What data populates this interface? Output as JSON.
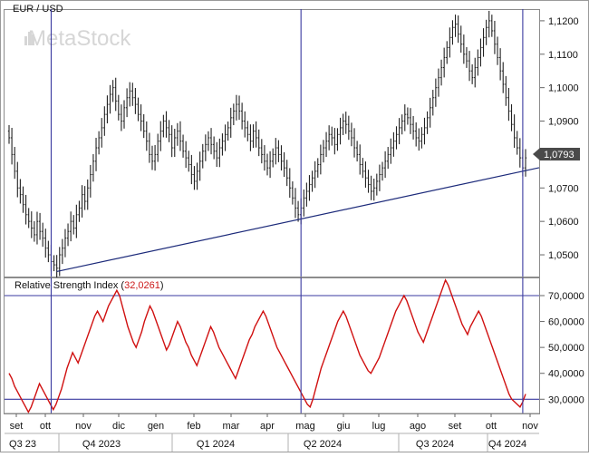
{
  "watermark": "MetaStock",
  "chart_data": [
    {
      "type": "ohlc",
      "title": "EUR / USD",
      "last_value_label": "1,0793",
      "y_tick_labels": [
        "1,1200",
        "1,1100",
        "1,1000",
        "1,0900",
        "1,0800",
        "1,0700",
        "1,0600",
        "1,0500"
      ],
      "y_ticks": [
        1.12,
        1.11,
        1.1,
        1.09,
        1.08,
        1.07,
        1.06,
        1.05
      ],
      "ylim": [
        1.0435,
        1.1235
      ],
      "series_close": [
        1.085,
        1.08,
        1.075,
        1.07,
        1.068,
        1.065,
        1.062,
        1.06,
        1.058,
        1.056,
        1.06,
        1.057,
        1.055,
        1.052,
        1.05,
        1.048,
        1.047,
        1.046,
        1.05,
        1.052,
        1.055,
        1.057,
        1.06,
        1.058,
        1.062,
        1.064,
        1.068,
        1.066,
        1.07,
        1.074,
        1.078,
        1.082,
        1.085,
        1.088,
        1.092,
        1.095,
        1.098,
        1.1,
        1.096,
        1.092,
        1.09,
        1.094,
        1.097,
        1.099,
        1.097,
        1.095,
        1.092,
        1.09,
        1.087,
        1.084,
        1.08,
        1.078,
        1.08,
        1.084,
        1.087,
        1.09,
        1.088,
        1.086,
        1.082,
        1.085,
        1.087,
        1.084,
        1.081,
        1.079,
        1.077,
        1.074,
        1.072,
        1.075,
        1.078,
        1.081,
        1.083,
        1.085,
        1.083,
        1.081,
        1.079,
        1.082,
        1.084,
        1.086,
        1.088,
        1.091,
        1.093,
        1.095,
        1.093,
        1.09,
        1.088,
        1.086,
        1.084,
        1.087,
        1.085,
        1.082,
        1.08,
        1.078,
        1.076,
        1.078,
        1.08,
        1.082,
        1.08,
        1.078,
        1.076,
        1.073,
        1.07,
        1.067,
        1.064,
        1.062,
        1.064,
        1.067,
        1.069,
        1.071,
        1.073,
        1.075,
        1.077,
        1.08,
        1.082,
        1.084,
        1.086,
        1.085,
        1.083,
        1.086,
        1.088,
        1.09,
        1.089,
        1.087,
        1.085,
        1.082,
        1.08,
        1.077,
        1.075,
        1.073,
        1.071,
        1.069,
        1.07,
        1.072,
        1.074,
        1.076,
        1.078,
        1.08,
        1.082,
        1.084,
        1.086,
        1.088,
        1.09,
        1.092,
        1.091,
        1.089,
        1.087,
        1.085,
        1.084,
        1.086,
        1.088,
        1.091,
        1.094,
        1.097,
        1.1,
        1.103,
        1.106,
        1.109,
        1.112,
        1.115,
        1.118,
        1.119,
        1.116,
        1.113,
        1.11,
        1.108,
        1.105,
        1.103,
        1.106,
        1.109,
        1.112,
        1.115,
        1.118,
        1.12,
        1.117,
        1.113,
        1.109,
        1.105,
        1.101,
        1.097,
        1.093,
        1.089,
        1.085,
        1.082,
        1.079,
        1.076,
        1.079
      ],
      "trendline": [
        {
          "i": 17,
          "y": 1.045
        },
        {
          "i": 194,
          "y": 1.077
        }
      ],
      "marker_bars": [
        15,
        104,
        183
      ],
      "x_month_labels": [
        "set",
        "ott",
        "nov",
        "dic",
        "gen",
        "feb",
        "mar",
        "apr",
        "mag",
        "giu",
        "lug",
        "ago",
        "set",
        "ott",
        "nov"
      ],
      "x_quarter_labels": [
        "Q3 23",
        "Q4 2023",
        "Q1 2024",
        "Q2 2024",
        "Q3 2024",
        "Q4 2024"
      ]
    },
    {
      "type": "line",
      "title": "Relative Strength Index",
      "current_value_label": "32,0261",
      "line_color": "#d01010",
      "y_tick_labels": [
        "70,0000",
        "60,0000",
        "50,0000",
        "40,0000",
        "30,0000"
      ],
      "y_ticks": [
        70,
        60,
        50,
        40,
        30
      ],
      "ylim": [
        24.5,
        77.0
      ],
      "reference_levels": [
        70,
        30
      ],
      "values": [
        40,
        38,
        35,
        33,
        31,
        29,
        27,
        25,
        27,
        30,
        33,
        36,
        34,
        32,
        30,
        28,
        26,
        28,
        31,
        34,
        38,
        42,
        45,
        48,
        46,
        44,
        47,
        50,
        53,
        56,
        59,
        62,
        64,
        62,
        60,
        63,
        66,
        68,
        70,
        72,
        70,
        66,
        62,
        58,
        55,
        52,
        50,
        53,
        56,
        60,
        63,
        66,
        64,
        61,
        58,
        55,
        52,
        49,
        51,
        54,
        57,
        60,
        58,
        55,
        52,
        50,
        47,
        45,
        43,
        46,
        49,
        52,
        55,
        58,
        56,
        53,
        50,
        48,
        46,
        44,
        42,
        40,
        38,
        41,
        44,
        47,
        50,
        53,
        55,
        58,
        60,
        62,
        64,
        62,
        59,
        56,
        53,
        50,
        48,
        46,
        44,
        42,
        40,
        38,
        36,
        34,
        32,
        30,
        28,
        27,
        30,
        34,
        38,
        42,
        45,
        48,
        51,
        54,
        57,
        60,
        62,
        64,
        62,
        59,
        56,
        53,
        50,
        47,
        45,
        43,
        41,
        40,
        42,
        44,
        46,
        49,
        52,
        55,
        58,
        61,
        64,
        66,
        68,
        70,
        68,
        65,
        62,
        59,
        56,
        54,
        52,
        55,
        58,
        61,
        64,
        67,
        70,
        73,
        76,
        74,
        71,
        68,
        65,
        62,
        59,
        57,
        55,
        58,
        60,
        62,
        64,
        62,
        59,
        56,
        53,
        50,
        47,
        44,
        41,
        38,
        35,
        32,
        30,
        29,
        28,
        27,
        29,
        32
      ],
      "x_month_labels": [
        "set",
        "ott",
        "nov",
        "dic",
        "gen",
        "feb",
        "mar",
        "apr",
        "mag",
        "giu",
        "lug",
        "ago",
        "set",
        "ott",
        "nov"
      ],
      "x_quarter_labels": [
        "Q3 23",
        "Q4 2023",
        "Q1 2024",
        "Q2 2024",
        "Q3 2024",
        "Q4 2024"
      ]
    }
  ]
}
